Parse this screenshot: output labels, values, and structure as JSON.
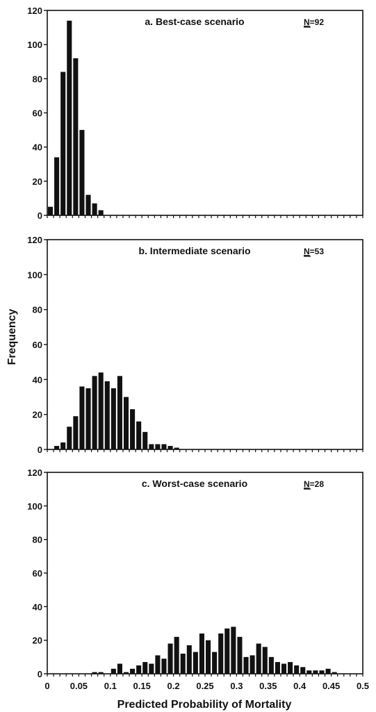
{
  "y_axis_label": "Frequency",
  "x_axis_label": "Predicted Probability of Mortality",
  "chart_data": [
    {
      "type": "bar",
      "title": "a. Best-case scenario",
      "n_label": "N",
      "n_value": "=92",
      "ylim": [
        0,
        120
      ],
      "yticks": [
        0,
        20,
        40,
        60,
        80,
        100,
        120
      ],
      "xlim": [
        0,
        0.5
      ],
      "xticks": [
        "0",
        "0.05",
        "0.1",
        "0.15",
        "0.2",
        "0.25",
        "0.3",
        "0.35",
        "0.4",
        "0.45",
        "0.5"
      ],
      "bin_width": 0.01,
      "values": [
        5,
        34,
        84,
        114,
        92,
        50,
        12,
        7,
        3,
        0,
        0,
        0,
        0,
        0,
        0,
        0,
        0,
        0,
        0,
        0,
        0,
        0,
        0,
        0,
        0,
        0,
        0,
        0,
        0,
        0,
        0,
        0,
        0,
        0,
        0,
        0,
        0,
        0,
        0,
        0,
        0,
        0,
        0,
        0,
        0,
        0,
        0,
        0,
        0,
        0
      ]
    },
    {
      "type": "bar",
      "title": "b. Intermediate scenario",
      "n_label": "N",
      "n_value": "=53",
      "ylim": [
        0,
        120
      ],
      "yticks": [
        0,
        20,
        40,
        60,
        80,
        100,
        120
      ],
      "xlim": [
        0,
        0.5
      ],
      "xticks": [
        "0",
        "0.05",
        "0.1",
        "0.15",
        "0.2",
        "0.25",
        "0.3",
        "0.35",
        "0.4",
        "0.45",
        "0.5"
      ],
      "bin_width": 0.01,
      "values": [
        0,
        2,
        4,
        13,
        19,
        36,
        35,
        42,
        44,
        39,
        35,
        42,
        30,
        23,
        16,
        10,
        3,
        3,
        3,
        2,
        1,
        0,
        0,
        0,
        0,
        0,
        0,
        0,
        0,
        0,
        0,
        0,
        0,
        0,
        0,
        0,
        0,
        0,
        0,
        0,
        0,
        0,
        0,
        0,
        0,
        0,
        0,
        0,
        0,
        0
      ]
    },
    {
      "type": "bar",
      "title": "c. Worst-case scenario",
      "n_label": "N",
      "n_value": "=28",
      "ylim": [
        0,
        120
      ],
      "yticks": [
        0,
        20,
        40,
        60,
        80,
        100,
        120
      ],
      "xlim": [
        0,
        0.5
      ],
      "xticks": [
        "0",
        "0.05",
        "0.1",
        "0.15",
        "0.2",
        "0.25",
        "0.3",
        "0.35",
        "0.4",
        "0.45",
        "0.5"
      ],
      "bin_width": 0.01,
      "values": [
        0,
        0,
        0,
        0,
        0,
        0,
        0,
        1,
        1,
        0,
        3,
        6,
        1,
        3,
        5,
        7,
        6,
        11,
        9,
        18,
        22,
        12,
        17,
        13,
        24,
        20,
        13,
        24,
        27,
        28,
        22,
        10,
        11,
        18,
        16,
        10,
        7,
        6,
        7,
        5,
        4,
        2,
        2,
        2,
        3,
        1,
        0,
        0,
        0,
        0
      ]
    }
  ]
}
